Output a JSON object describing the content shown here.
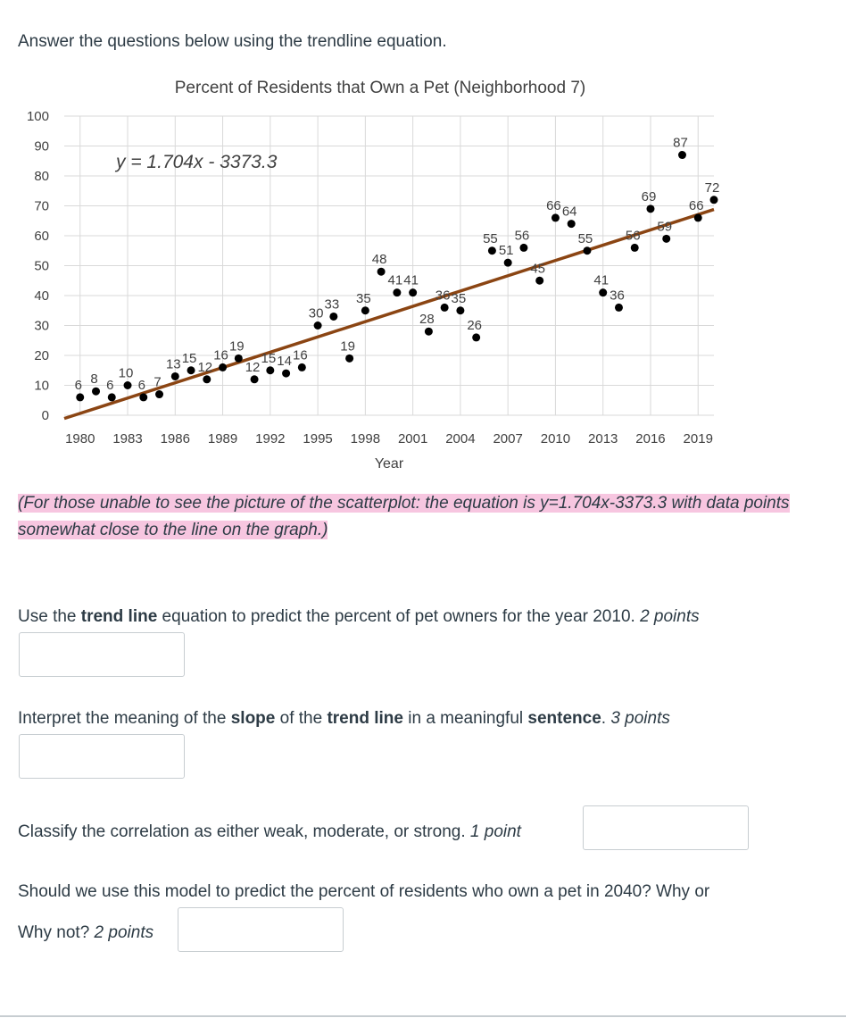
{
  "intro": "Answer the questions below using the trendline equation.",
  "chart_data": {
    "type": "scatter",
    "title": "Percent of Residents that Own a Pet (Neighborhood 7)",
    "xlabel": "Year",
    "ylabel": "",
    "xlim": [
      1979,
      2020
    ],
    "ylim": [
      0,
      100
    ],
    "x_ticks": [
      1980,
      1983,
      1986,
      1989,
      1992,
      1995,
      1998,
      2001,
      2004,
      2007,
      2010,
      2013,
      2016,
      2019
    ],
    "y_ticks": [
      0,
      10,
      20,
      30,
      40,
      50,
      60,
      70,
      80,
      90,
      100
    ],
    "grid": true,
    "legend": "none",
    "marker_color": "#000000",
    "trendline": {
      "equation": "y = 1.704x - 3373.3",
      "slope": 1.704,
      "intercept": -3373.3,
      "color": "#8b4513"
    },
    "x": [
      1980,
      1981,
      1982,
      1983,
      1984,
      1985,
      1986,
      1987,
      1988,
      1989,
      1990,
      1991,
      1992,
      1993,
      1994,
      1995,
      1996,
      1997,
      1998,
      1999,
      2000,
      2001,
      2002,
      2003,
      2004,
      2005,
      2006,
      2007,
      2008,
      2009,
      2010,
      2011,
      2012,
      2013,
      2014,
      2015,
      2016,
      2017,
      2018,
      2019,
      2020
    ],
    "y": [
      6,
      8,
      6,
      10,
      6,
      7,
      13,
      15,
      12,
      16,
      19,
      12,
      15,
      14,
      16,
      30,
      33,
      19,
      35,
      48,
      41,
      41,
      28,
      36,
      35,
      26,
      55,
      51,
      56,
      45,
      66,
      64,
      55,
      41,
      36,
      56,
      69,
      59,
      87,
      66,
      72
    ]
  },
  "note": "(For those unable to see the picture of the scatterplot: the equation is y=1.704x-3373.3 with data points somewhat close to the line on the graph.)",
  "questions": [
    {
      "pre": "Use the ",
      "b1": "trend line",
      "mid": " equation to predict the percent of pet owners for the year 2010. ",
      "pts": "2 points"
    },
    {
      "pre": "Interpret the meaning of the ",
      "b1": "slope",
      "mid": " of the ",
      "b2": "trend line",
      "mid2": " in a meaningful ",
      "b3": "sentence",
      "post": ". ",
      "pts": "3 points"
    },
    {
      "text": "Classify the correlation as either weak, moderate, or strong. ",
      "pts": "1 point"
    },
    {
      "line1": "Should we use this model to predict the percent of residents who own a pet in 2040? Why or",
      "line2": "Why not? ",
      "pts": "2 points"
    }
  ]
}
